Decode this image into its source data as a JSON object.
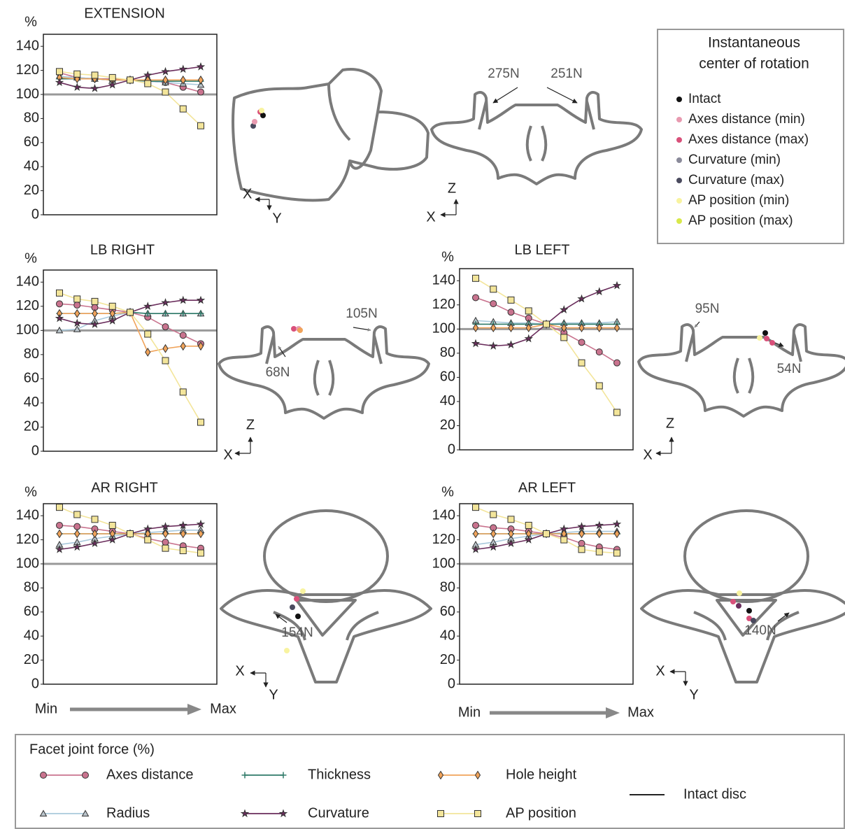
{
  "chart_data": [
    {
      "type": "line",
      "title": "EXTENSION",
      "ylabel": "%",
      "categories": [
        null,
        null,
        null,
        null,
        null,
        null,
        null,
        null,
        null
      ],
      "ylim": [
        0,
        150
      ],
      "yticks": [
        0,
        20,
        40,
        60,
        80,
        100,
        120,
        140
      ],
      "intact": 100,
      "intact_color": "#999999",
      "series": [
        {
          "name": "Axes distance",
          "color": "#c9738e",
          "marker": "circle",
          "values": [
            118,
            114,
            113,
            113,
            112,
            111,
            110,
            106,
            102
          ]
        },
        {
          "name": "Radius",
          "color": "#a9c9dc",
          "marker": "triangle",
          "values": [
            115,
            114,
            113,
            112,
            112,
            111,
            110,
            109,
            108
          ]
        },
        {
          "name": "Thickness",
          "color": "#2f7a68",
          "marker": "plus",
          "values": [
            113,
            113,
            113,
            112,
            112,
            111,
            111,
            111,
            111
          ]
        },
        {
          "name": "Hole height",
          "color": "#f0a35a",
          "marker": "diamond",
          "values": [
            114,
            113,
            113,
            112,
            112,
            112,
            112,
            112,
            112
          ]
        },
        {
          "name": "Curvature",
          "color": "#6a2d5c",
          "marker": "star",
          "values": [
            110,
            106,
            105,
            108,
            112,
            116,
            119,
            121,
            123
          ]
        },
        {
          "name": "AP position",
          "color": "#f3e59a",
          "marker": "square",
          "values": [
            119,
            117,
            116,
            114,
            112,
            109,
            102,
            88,
            74
          ]
        }
      ]
    },
    {
      "type": "line",
      "title": "LB RIGHT",
      "ylabel": "%",
      "categories": [
        null,
        null,
        null,
        null,
        null,
        null,
        null,
        null,
        null
      ],
      "ylim": [
        0,
        150
      ],
      "yticks": [
        0,
        20,
        40,
        60,
        80,
        100,
        120,
        140
      ],
      "intact": 100,
      "intact_color": "#999999",
      "series": [
        {
          "name": "Axes distance",
          "color": "#c9738e",
          "marker": "circle",
          "values": [
            122,
            121,
            119,
            117,
            115,
            111,
            103,
            96,
            89
          ]
        },
        {
          "name": "Radius",
          "color": "#a9c9dc",
          "marker": "triangle",
          "values": [
            100,
            101,
            108,
            112,
            115,
            114,
            114,
            114,
            114
          ]
        },
        {
          "name": "Thickness",
          "color": "#2f7a68",
          "marker": "plus",
          "values": [
            114,
            114,
            114,
            114,
            115,
            114,
            114,
            114,
            114
          ]
        },
        {
          "name": "Hole height",
          "color": "#f0a35a",
          "marker": "diamond",
          "values": [
            114,
            114,
            114,
            114,
            115,
            82,
            85,
            87,
            87
          ]
        },
        {
          "name": "Curvature",
          "color": "#6a2d5c",
          "marker": "star",
          "values": [
            110,
            106,
            105,
            108,
            115,
            120,
            123,
            125,
            125
          ]
        },
        {
          "name": "AP position",
          "color": "#f3e59a",
          "marker": "square",
          "values": [
            131,
            126,
            124,
            120,
            115,
            97,
            75,
            49,
            24
          ]
        }
      ]
    },
    {
      "type": "line",
      "title": "LB LEFT",
      "ylabel": "%",
      "categories": [
        null,
        null,
        null,
        null,
        null,
        null,
        null,
        null,
        null
      ],
      "ylim": [
        0,
        150
      ],
      "yticks": [
        0,
        20,
        40,
        60,
        80,
        100,
        120,
        140
      ],
      "intact": 100,
      "intact_color": "#999999",
      "series": [
        {
          "name": "Axes distance",
          "color": "#c9738e",
          "marker": "circle",
          "values": [
            126,
            121,
            114,
            109,
            104,
            97,
            89,
            81,
            72
          ]
        },
        {
          "name": "Radius",
          "color": "#a9c9dc",
          "marker": "triangle",
          "values": [
            107,
            106,
            105,
            105,
            104,
            105,
            105,
            105,
            106
          ]
        },
        {
          "name": "Thickness",
          "color": "#2f7a68",
          "marker": "plus",
          "values": [
            104,
            104,
            104,
            104,
            104,
            104,
            104,
            104,
            104
          ]
        },
        {
          "name": "Hole height",
          "color": "#f0a35a",
          "marker": "diamond",
          "values": [
            101,
            101,
            101,
            101,
            104,
            101,
            101,
            101,
            101
          ]
        },
        {
          "name": "Curvature",
          "color": "#6a2d5c",
          "marker": "star",
          "values": [
            88,
            86,
            87,
            92,
            104,
            116,
            125,
            131,
            136
          ]
        },
        {
          "name": "AP position",
          "color": "#f3e59a",
          "marker": "square",
          "values": [
            142,
            133,
            124,
            115,
            104,
            93,
            72,
            53,
            31
          ]
        }
      ]
    },
    {
      "type": "line",
      "title": "AR RIGHT",
      "ylabel": "%",
      "categories": [
        null,
        null,
        null,
        null,
        null,
        null,
        null,
        null,
        null
      ],
      "ylim": [
        0,
        150
      ],
      "yticks": [
        0,
        20,
        40,
        60,
        80,
        100,
        120,
        140
      ],
      "intact": 100,
      "intact_color": "#999999",
      "series": [
        {
          "name": "Axes distance",
          "color": "#c9738e",
          "marker": "circle",
          "values": [
            132,
            131,
            129,
            127,
            125,
            121,
            118,
            115,
            113
          ]
        },
        {
          "name": "Radius",
          "color": "#a9c9dc",
          "marker": "triangle",
          "values": [
            116,
            118,
            121,
            123,
            125,
            126,
            127,
            128,
            128
          ]
        },
        {
          "name": "Thickness",
          "color": "#2f7a68",
          "marker": "plus",
          "values": [
            125,
            125,
            125,
            125,
            125,
            125,
            125,
            125,
            125
          ]
        },
        {
          "name": "Hole height",
          "color": "#f0a35a",
          "marker": "diamond",
          "values": [
            125,
            125,
            125,
            125,
            125,
            125,
            125,
            125,
            125
          ]
        },
        {
          "name": "Curvature",
          "color": "#6a2d5c",
          "marker": "star",
          "values": [
            112,
            114,
            117,
            120,
            125,
            129,
            131,
            132,
            133
          ]
        },
        {
          "name": "AP position",
          "color": "#f3e59a",
          "marker": "square",
          "values": [
            147,
            141,
            137,
            132,
            125,
            120,
            113,
            111,
            109
          ]
        }
      ]
    },
    {
      "type": "line",
      "title": "AR LEFT",
      "ylabel": "%",
      "categories": [
        null,
        null,
        null,
        null,
        null,
        null,
        null,
        null,
        null
      ],
      "ylim": [
        0,
        150
      ],
      "yticks": [
        0,
        20,
        40,
        60,
        80,
        100,
        120,
        140
      ],
      "intact": 100,
      "intact_color": "#999999",
      "series": [
        {
          "name": "Axes distance",
          "color": "#c9738e",
          "marker": "circle",
          "values": [
            132,
            130,
            129,
            127,
            125,
            122,
            117,
            114,
            112
          ]
        },
        {
          "name": "Radius",
          "color": "#a9c9dc",
          "marker": "triangle",
          "values": [
            116,
            118,
            121,
            123,
            125,
            126,
            127,
            127,
            127
          ]
        },
        {
          "name": "Thickness",
          "color": "#2f7a68",
          "marker": "plus",
          "values": [
            125,
            125,
            125,
            125,
            125,
            125,
            125,
            125,
            125
          ]
        },
        {
          "name": "Hole height",
          "color": "#f0a35a",
          "marker": "diamond",
          "values": [
            125,
            125,
            125,
            125,
            125,
            125,
            125,
            125,
            125
          ]
        },
        {
          "name": "Curvature",
          "color": "#6a2d5c",
          "marker": "star",
          "values": [
            112,
            114,
            117,
            120,
            125,
            129,
            131,
            132,
            133
          ]
        },
        {
          "name": "AP position",
          "color": "#f3e59a",
          "marker": "square",
          "values": [
            147,
            141,
            137,
            132,
            125,
            120,
            112,
            110,
            109
          ]
        }
      ]
    }
  ],
  "diagrams": [
    {
      "axes": [
        "X",
        "Y"
      ]
    },
    {
      "forces": [
        "275N",
        "251N"
      ],
      "axes": [
        "X",
        "Z"
      ]
    },
    {
      "forces": [
        "68N",
        "105N"
      ],
      "axes": [
        "X",
        "Z"
      ]
    },
    {
      "forces": [
        "95N",
        "54N"
      ],
      "axes": [
        "X",
        "Z"
      ]
    },
    {
      "forces": [
        "154N"
      ],
      "axes": [
        "X",
        "Y"
      ]
    },
    {
      "forces": [
        "140N"
      ],
      "axes": [
        "X",
        "Y"
      ]
    }
  ],
  "min_max": [
    {
      "from": "Min",
      "to": "Max"
    },
    {
      "from": "Min",
      "to": "Max"
    }
  ],
  "icr_legend": {
    "title": [
      "Instantaneous",
      "center of rotation"
    ],
    "entries": [
      {
        "name": "Intact",
        "color": "#111111"
      },
      {
        "name": "Axes distance (min)",
        "color": "#e89ab0"
      },
      {
        "name": "Axes distance (max)",
        "color": "#d9507a"
      },
      {
        "name": "Curvature (min)",
        "color": "#8a8a9a"
      },
      {
        "name": "Curvature (max)",
        "color": "#4a4a5e"
      },
      {
        "name": "AP position (min)",
        "color": "#f8f3a0"
      },
      {
        "name": "AP position (max)",
        "color": "#d8e84a"
      }
    ]
  },
  "force_legend": {
    "title": "Facet joint force (%)",
    "intact": "Intact disc",
    "intact_color": "#222222"
  }
}
